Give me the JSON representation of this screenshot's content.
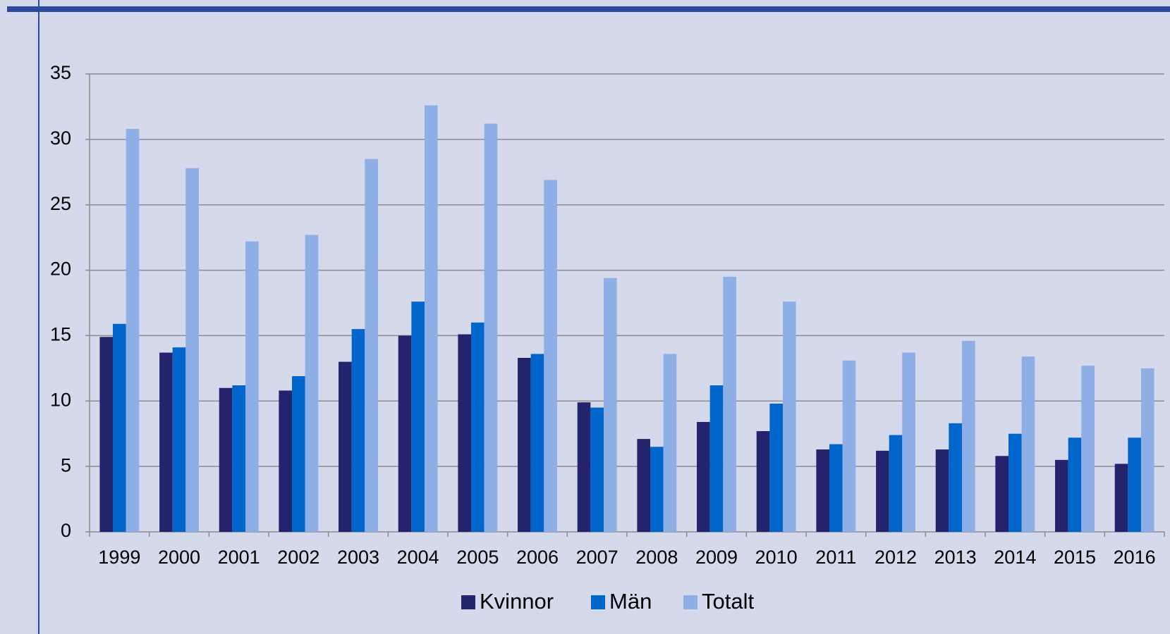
{
  "chart_data": {
    "type": "bar",
    "categories": [
      "1999",
      "2000",
      "2001",
      "2002",
      "2003",
      "2004",
      "2005",
      "2006",
      "2007",
      "2008",
      "2009",
      "2010",
      "2011",
      "2012",
      "2013",
      "2014",
      "2015",
      "2016"
    ],
    "series": [
      {
        "name": "Kvinnor",
        "color": "#23236e",
        "values": [
          14.9,
          13.7,
          11.0,
          10.8,
          13.0,
          15.0,
          15.1,
          13.3,
          9.9,
          7.1,
          8.4,
          7.7,
          6.3,
          6.2,
          6.3,
          5.8,
          5.5,
          5.2
        ]
      },
      {
        "name": "Män",
        "color": "#0066cc",
        "values": [
          15.9,
          14.1,
          11.2,
          11.9,
          15.5,
          17.6,
          16.0,
          13.6,
          9.5,
          6.5,
          11.2,
          9.8,
          6.7,
          7.4,
          8.3,
          7.5,
          7.2,
          7.2
        ]
      },
      {
        "name": "Totalt",
        "color": "#8eaee6",
        "values": [
          30.8,
          27.8,
          22.2,
          22.7,
          28.5,
          32.6,
          31.2,
          26.9,
          19.4,
          13.6,
          19.5,
          17.6,
          13.1,
          13.7,
          14.6,
          13.4,
          12.7,
          12.5
        ]
      }
    ],
    "ylim": [
      0,
      35
    ],
    "yticks": [
      0,
      5,
      10,
      15,
      20,
      25,
      30,
      35
    ],
    "grid": true
  }
}
